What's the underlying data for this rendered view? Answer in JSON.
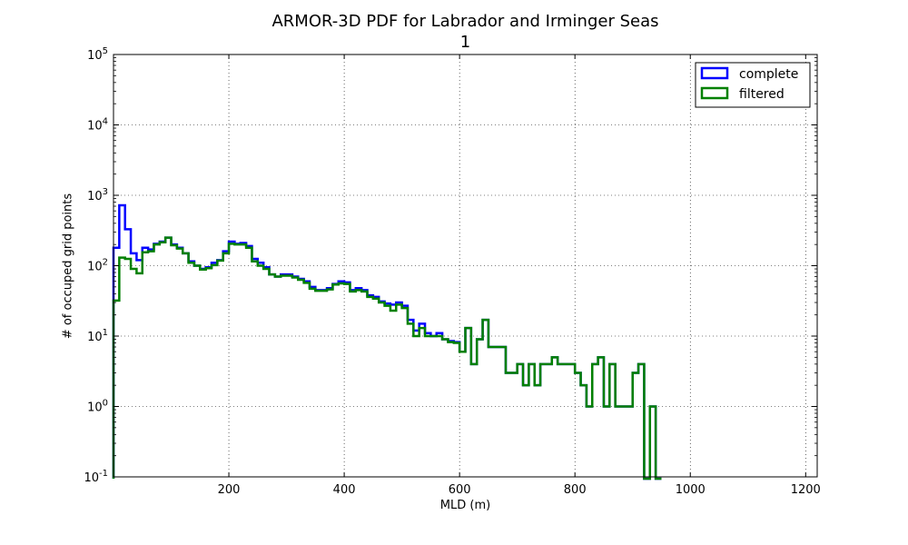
{
  "chart_data": {
    "type": "histogram",
    "title": "ARMOR-3D PDF for Labrador and Irminger Seas",
    "subtitle": "1",
    "xlabel": "MLD (m)",
    "ylabel": "# of occuped grid points",
    "xlim": [
      0,
      1220
    ],
    "ylim": [
      0.1,
      100000
    ],
    "yscale": "log",
    "grid": true,
    "legend_position": "upper right",
    "x_ticks": [
      "200",
      "400",
      "600",
      "800",
      "1000",
      "1200"
    ],
    "x_tick_values": [
      200,
      400,
      600,
      800,
      1000,
      1200
    ],
    "y_tick_exponents": [
      "-1",
      "0",
      "1",
      "2",
      "3",
      "4",
      "5"
    ],
    "y_tick_base": "10",
    "bin_width": 10,
    "bin_start": 0,
    "series": [
      {
        "name": "complete",
        "color": "#0000ff",
        "values": [
          180,
          720,
          330,
          150,
          120,
          180,
          170,
          205,
          220,
          250,
          200,
          180,
          150,
          115,
          100,
          90,
          95,
          110,
          120,
          160,
          220,
          205,
          210,
          190,
          125,
          110,
          95,
          75,
          70,
          75,
          75,
          70,
          65,
          60,
          50,
          45,
          45,
          48,
          55,
          60,
          58,
          45,
          48,
          45,
          38,
          36,
          31,
          29,
          28,
          30,
          27,
          17,
          12,
          15,
          11,
          10,
          11,
          9,
          8.5,
          8.2,
          6,
          13,
          4,
          9,
          17,
          7,
          7,
          7,
          3,
          3,
          4,
          2,
          4,
          2,
          4,
          4,
          5,
          4,
          4,
          4,
          3,
          2,
          1,
          4,
          5,
          1,
          4,
          1,
          1,
          1,
          3,
          4,
          0.08,
          1,
          0.08
        ],
        "colorName": "blue"
      },
      {
        "name": "filtered",
        "color": "#008000",
        "values": [
          32,
          130,
          125,
          90,
          78,
          155,
          160,
          200,
          215,
          250,
          195,
          175,
          150,
          110,
          100,
          88,
          92,
          102,
          118,
          150,
          205,
          200,
          200,
          180,
          115,
          100,
          90,
          75,
          70,
          72,
          72,
          68,
          63,
          57,
          47,
          44,
          44,
          46,
          54,
          56,
          55,
          43,
          45,
          43,
          36,
          34,
          30,
          27,
          23,
          28,
          25,
          15,
          10,
          13,
          10,
          10,
          10,
          9,
          8.2,
          8,
          6,
          13,
          4,
          9,
          17,
          7,
          7,
          7,
          3,
          3,
          4,
          2,
          4,
          2,
          4,
          4,
          5,
          4,
          4,
          4,
          3,
          2,
          1,
          4,
          5,
          1,
          4,
          1,
          1,
          1,
          3,
          4,
          0.08,
          1,
          0.08
        ]
      }
    ]
  }
}
